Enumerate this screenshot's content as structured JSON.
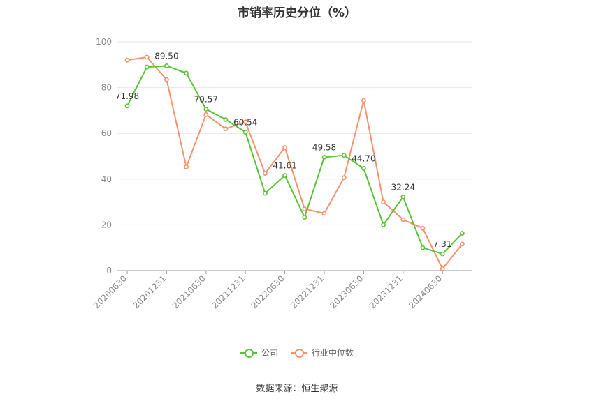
{
  "chart_data": {
    "type": "line",
    "title": "市销率历史分位（%）",
    "source": "数据来源：恒生聚源",
    "ylim": [
      0,
      100
    ],
    "yticks": [
      0,
      20,
      40,
      60,
      80,
      100
    ],
    "grid": true,
    "legend_position": "bottom",
    "x": [
      "20200630",
      "20200930",
      "20201231",
      "20210331",
      "20210630",
      "20210930",
      "20211231",
      "20220331",
      "20220630",
      "20220930",
      "20221231",
      "20230331",
      "20230630",
      "20230930",
      "20231231",
      "20240331",
      "20240630",
      "20240930"
    ],
    "xtick_labels": [
      "20200630",
      "20201231",
      "20210630",
      "20211231",
      "20220630",
      "20221231",
      "20230630",
      "20231231",
      "20240630"
    ],
    "series": [
      {
        "name": "公司",
        "color": "#5bc236",
        "values": [
          71.98,
          89.0,
          89.5,
          86.3,
          70.57,
          66.0,
          60.54,
          33.8,
          41.61,
          23.3,
          49.58,
          50.4,
          44.7,
          20.0,
          32.24,
          10.0,
          7.31,
          16.3
        ],
        "labels": [
          {
            "index": 0,
            "text": "71.98"
          },
          {
            "index": 2,
            "text": "89.50"
          },
          {
            "index": 4,
            "text": "70.57"
          },
          {
            "index": 6,
            "text": "60.54"
          },
          {
            "index": 8,
            "text": "41.61"
          },
          {
            "index": 10,
            "text": "49.58"
          },
          {
            "index": 12,
            "text": "44.70"
          },
          {
            "index": 14,
            "text": "32.24"
          },
          {
            "index": 16,
            "text": "7.31"
          }
        ]
      },
      {
        "name": "行业中位数",
        "color": "#f4926c",
        "values": [
          92.0,
          93.3,
          83.5,
          45.3,
          68.2,
          62.0,
          65.0,
          42.5,
          53.8,
          27.0,
          25.0,
          40.6,
          74.4,
          30.0,
          22.3,
          18.5,
          0.8,
          11.6
        ],
        "labels": []
      }
    ]
  }
}
